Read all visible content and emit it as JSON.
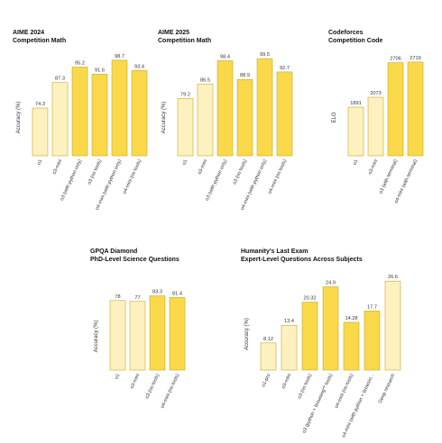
{
  "colors": {
    "pale": "#fdf1bf",
    "mid": "#fbe68d",
    "bright": "#f9d84a",
    "stroke": "#c9a92a"
  },
  "chart_data": [
    {
      "type": "bar",
      "title": "AIME 2024",
      "subtitle": "Competition Math",
      "ylabel": "Accuracy (%)",
      "ylim": [
        50,
        100
      ],
      "categories": [
        "o1",
        "o3-mini",
        "o3 (with python only)",
        "o3 (no tools)",
        "o4-mini (with python only)",
        "o4-mini (no tools)"
      ],
      "values": [
        74.3,
        87.3,
        95.2,
        91.6,
        98.7,
        93.4
      ],
      "value_labels": [
        "74.3",
        "87.3",
        "95.2",
        "91.6",
        "98.7",
        "93.4"
      ],
      "shades": [
        "pale",
        "pale",
        "bright",
        "bright",
        "bright",
        "bright"
      ]
    },
    {
      "type": "bar",
      "title": "AIME 2025",
      "subtitle": "Competition Math",
      "ylabel": "Accuracy (%)",
      "ylim": [
        50,
        100
      ],
      "categories": [
        "o1",
        "o3-mini",
        "o3 (with python only)",
        "o3 (no tools)",
        "o4-mini (with python only)",
        "o4-mini (no tools)"
      ],
      "values": [
        79.2,
        86.5,
        98.4,
        88.9,
        99.5,
        92.7
      ],
      "value_labels": [
        "79.2",
        "86.5",
        "98.4",
        "88.9",
        "99.5",
        "92.7"
      ],
      "shades": [
        "pale",
        "pale",
        "bright",
        "bright",
        "bright",
        "bright"
      ]
    },
    {
      "type": "bar",
      "title": "Codeforces",
      "subtitle": "Competition Code",
      "ylabel": "ELO",
      "ylim": [
        1000,
        2800
      ],
      "categories": [
        "o1",
        "o3-mini",
        "o3 (with terminal)",
        "o4-mini (with terminal)"
      ],
      "values": [
        1891,
        2073,
        2706,
        2719
      ],
      "value_labels": [
        "1891",
        "2073",
        "2706",
        "2719"
      ],
      "shades": [
        "pale",
        "pale",
        "bright",
        "bright"
      ]
    },
    {
      "type": "bar",
      "title": "GPQA Diamond",
      "subtitle": "PhD-Level Science Questions",
      "ylabel": "Accuracy (%)",
      "ylim": [
        0,
        100
      ],
      "categories": [
        "o1",
        "o3-mini",
        "o3 (no tools)",
        "o4-mini (no tools)"
      ],
      "values": [
        78,
        77,
        83.3,
        81.4
      ],
      "value_labels": [
        "78",
        "77",
        "83.3",
        "81.4"
      ],
      "shades": [
        "pale",
        "pale",
        "bright",
        "bright"
      ]
    },
    {
      "type": "bar",
      "title": "Humanity's Last Exam",
      "subtitle": "Expert-Level Questions Across Subjects",
      "ylabel": "Accuracy (%)",
      "ylim": [
        0,
        28
      ],
      "categories": [
        "o1-pro",
        "o3-mini",
        "o3 (no tools)",
        "o3 (python + browsing** tools)",
        "o4-mini (no tools)",
        "o4-mini (with python + browsin...",
        "Deep research"
      ],
      "values": [
        8.12,
        13.4,
        20.32,
        24.9,
        14.28,
        17.7,
        26.6
      ],
      "value_labels": [
        "8.12",
        "13.4",
        "20.32",
        "24.9",
        "14.28",
        "17.7",
        "26.6"
      ],
      "shades": [
        "pale",
        "pale",
        "bright",
        "bright",
        "bright",
        "bright",
        "pale"
      ]
    }
  ]
}
